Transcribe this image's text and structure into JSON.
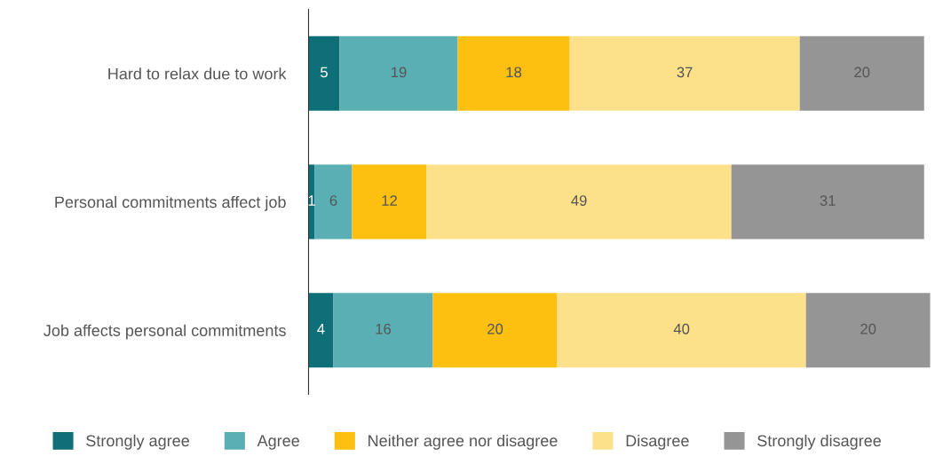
{
  "chart_data": {
    "type": "bar",
    "orientation": "horizontal",
    "stacked": true,
    "data_labels": true,
    "legend": "bottom",
    "tick_labels": "y",
    "grid": false,
    "categories": [
      "Hard to relax due to work",
      "Personal commitments affect job",
      "Job affects personal commitments"
    ],
    "series": [
      {
        "name": "Strongly agree",
        "color": "#0e6f78",
        "values": [
          5,
          1,
          4
        ]
      },
      {
        "name": "Agree",
        "color": "#5aafb5",
        "values": [
          19,
          6,
          16
        ]
      },
      {
        "name": "Neither agree nor disagree",
        "color": "#fdbf10",
        "values": [
          18,
          12,
          20
        ]
      },
      {
        "name": "Disagree",
        "color": "#fde08a",
        "values": [
          37,
          49,
          40
        ]
      },
      {
        "name": "Strongly disagree",
        "color": "#959595",
        "values": [
          20,
          31,
          20
        ]
      }
    ]
  }
}
